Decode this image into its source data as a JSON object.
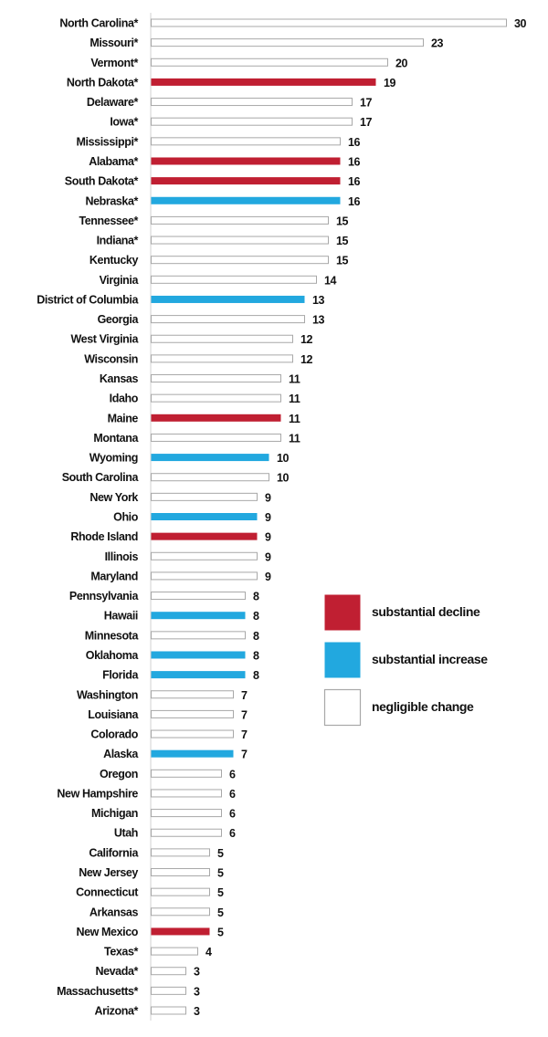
{
  "chart_data": {
    "type": "bar",
    "orientation": "horizontal",
    "categories": [
      "North Carolina*",
      "Missouri*",
      "Vermont*",
      "North Dakota*",
      "Delaware*",
      "Iowa*",
      "Mississippi*",
      "Alabama*",
      "South Dakota*",
      "Nebraska*",
      "Tennessee*",
      "Indiana*",
      "Kentucky",
      "Virginia",
      "District of Columbia",
      "Georgia",
      "West Virginia",
      "Wisconsin",
      "Kansas",
      "Idaho",
      "Maine",
      "Montana",
      "Wyoming",
      "South Carolina",
      "New York",
      "Ohio",
      "Rhode Island",
      "Illinois",
      "Maryland",
      "Pennsylvania",
      "Hawaii",
      "Minnesota",
      "Oklahoma",
      "Florida",
      "Washington",
      "Louisiana",
      "Colorado",
      "Alaska",
      "Oregon",
      "New Hampshire",
      "Michigan",
      "Utah",
      "California",
      "New Jersey",
      "Connecticut",
      "Arkansas",
      "New Mexico",
      "Texas*",
      "Nevada*",
      "Massachusetts*",
      "Arizona*"
    ],
    "values": [
      30,
      23,
      20,
      19,
      17,
      17,
      16,
      16,
      16,
      16,
      15,
      15,
      15,
      14,
      13,
      13,
      12,
      12,
      11,
      11,
      11,
      11,
      10,
      10,
      9,
      9,
      9,
      9,
      9,
      8,
      8,
      8,
      8,
      8,
      7,
      7,
      7,
      7,
      6,
      6,
      6,
      6,
      5,
      5,
      5,
      5,
      5,
      4,
      3,
      3,
      3
    ],
    "change": [
      "negligible",
      "negligible",
      "negligible",
      "decline",
      "negligible",
      "negligible",
      "negligible",
      "decline",
      "decline",
      "increase",
      "negligible",
      "negligible",
      "negligible",
      "negligible",
      "increase",
      "negligible",
      "negligible",
      "negligible",
      "negligible",
      "negligible",
      "decline",
      "negligible",
      "increase",
      "negligible",
      "negligible",
      "increase",
      "decline",
      "negligible",
      "negligible",
      "negligible",
      "increase",
      "negligible",
      "increase",
      "increase",
      "negligible",
      "negligible",
      "negligible",
      "increase",
      "negligible",
      "negligible",
      "negligible",
      "negligible",
      "negligible",
      "negligible",
      "negligible",
      "negligible",
      "decline",
      "negligible",
      "negligible",
      "negligible",
      "negligible"
    ],
    "xlim": [
      0,
      30
    ],
    "grid": false,
    "legend_position": "right",
    "legend": [
      {
        "key": "decline",
        "label": "substantial decline",
        "color": "#c01f32"
      },
      {
        "key": "increase",
        "label": "substantial increase",
        "color": "#22a8df"
      },
      {
        "key": "negligible",
        "label": "negligible change",
        "color": "#ffffff"
      }
    ]
  }
}
